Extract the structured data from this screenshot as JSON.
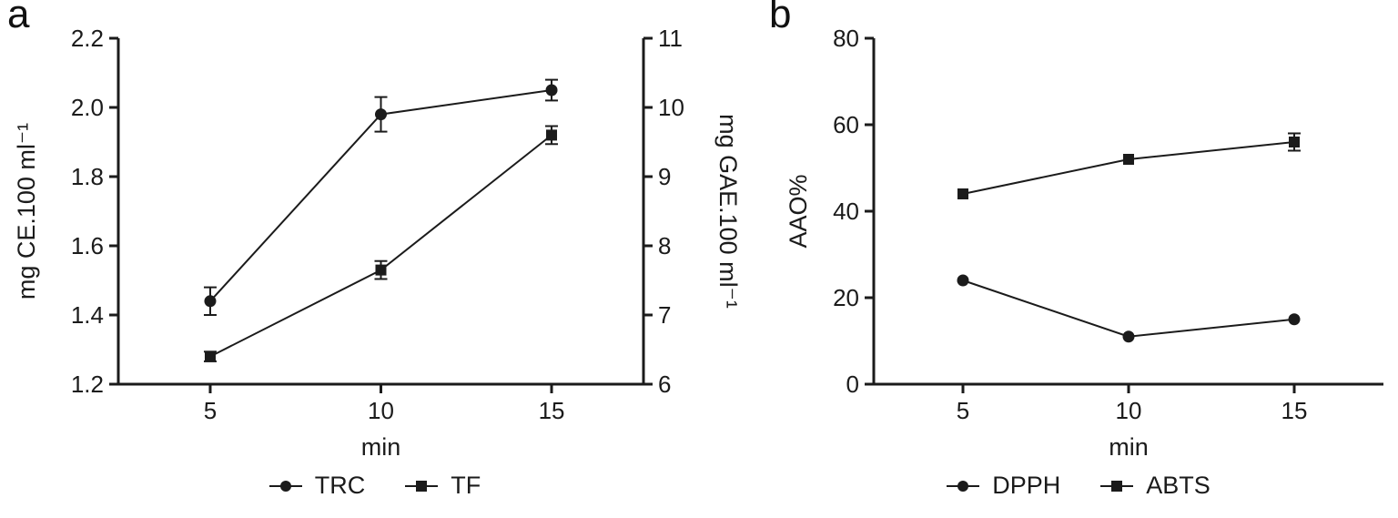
{
  "panels": [
    {
      "letter": "a"
    },
    {
      "letter": "b"
    }
  ],
  "colors": {
    "ink": "#1b1b1b",
    "background": "#ffffff"
  },
  "chart_data": [
    {
      "type": "line",
      "panel": "a",
      "xlabel": "min",
      "x": [
        5,
        10,
        15
      ],
      "x_tick_labels": [
        "5",
        "10",
        "15"
      ],
      "left_axis": {
        "label": "mg CE.100 ml⁻¹",
        "min": 1.2,
        "max": 2.2,
        "tick_labels": [
          "1.2",
          "1.4",
          "1.6",
          "1.8",
          "2.0",
          "2.2"
        ]
      },
      "right_axis": {
        "label": "mg GAE.100 ml⁻¹",
        "min": 6,
        "max": 11,
        "tick_labels": [
          "6",
          "7",
          "8",
          "9",
          "10",
          "11"
        ]
      },
      "legend_position": "bottom",
      "series": [
        {
          "name": "TRC",
          "marker": "circle",
          "axis": "left",
          "values": [
            1.44,
            1.98,
            2.05
          ],
          "errors": [
            0.04,
            0.05,
            0.03
          ]
        },
        {
          "name": "TF",
          "marker": "square",
          "axis": "right",
          "values": [
            6.4,
            7.65,
            9.6
          ],
          "errors": [
            0.07,
            0.13,
            0.13
          ]
        }
      ]
    },
    {
      "type": "line",
      "panel": "b",
      "xlabel": "min",
      "x": [
        5,
        10,
        15
      ],
      "x_tick_labels": [
        "5",
        "10",
        "15"
      ],
      "left_axis": {
        "label": "AAO%",
        "min": 0,
        "max": 80,
        "tick_labels": [
          "0",
          "20",
          "40",
          "60",
          "80"
        ]
      },
      "legend_position": "bottom",
      "series": [
        {
          "name": "DPPH",
          "marker": "circle",
          "axis": "left",
          "values": [
            24,
            11,
            15
          ],
          "errors": [
            0,
            0,
            0
          ]
        },
        {
          "name": "ABTS",
          "marker": "square",
          "axis": "left",
          "values": [
            44,
            52,
            56
          ],
          "errors": [
            0,
            0,
            2
          ]
        }
      ]
    }
  ]
}
